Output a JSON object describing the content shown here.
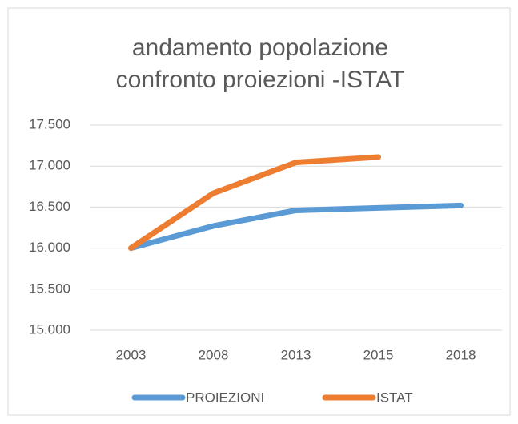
{
  "chart_data": {
    "type": "line",
    "title": "andamento popolazione confronto proiezioni -ISTAT",
    "categories": [
      "2003",
      "2008",
      "2013",
      "2015",
      "2018"
    ],
    "series": [
      {
        "name": "PROIEZIONI",
        "color": "#5b9bd5",
        "values": [
          16000,
          16270,
          16460,
          16490,
          16520
        ]
      },
      {
        "name": "ISTAT",
        "color": "#ed7d31",
        "values": [
          16000,
          16670,
          17045,
          17110,
          null
        ]
      }
    ],
    "ylim": [
      15000,
      17500
    ],
    "yticks": [
      {
        "value": 15000,
        "label": "15.000"
      },
      {
        "value": 15500,
        "label": "15.500"
      },
      {
        "value": 16000,
        "label": "16.000"
      },
      {
        "value": 16500,
        "label": "16.500"
      },
      {
        "value": 17000,
        "label": "17.000"
      },
      {
        "value": 17500,
        "label": "17.500"
      }
    ],
    "grid": true,
    "legend": "bottom"
  }
}
